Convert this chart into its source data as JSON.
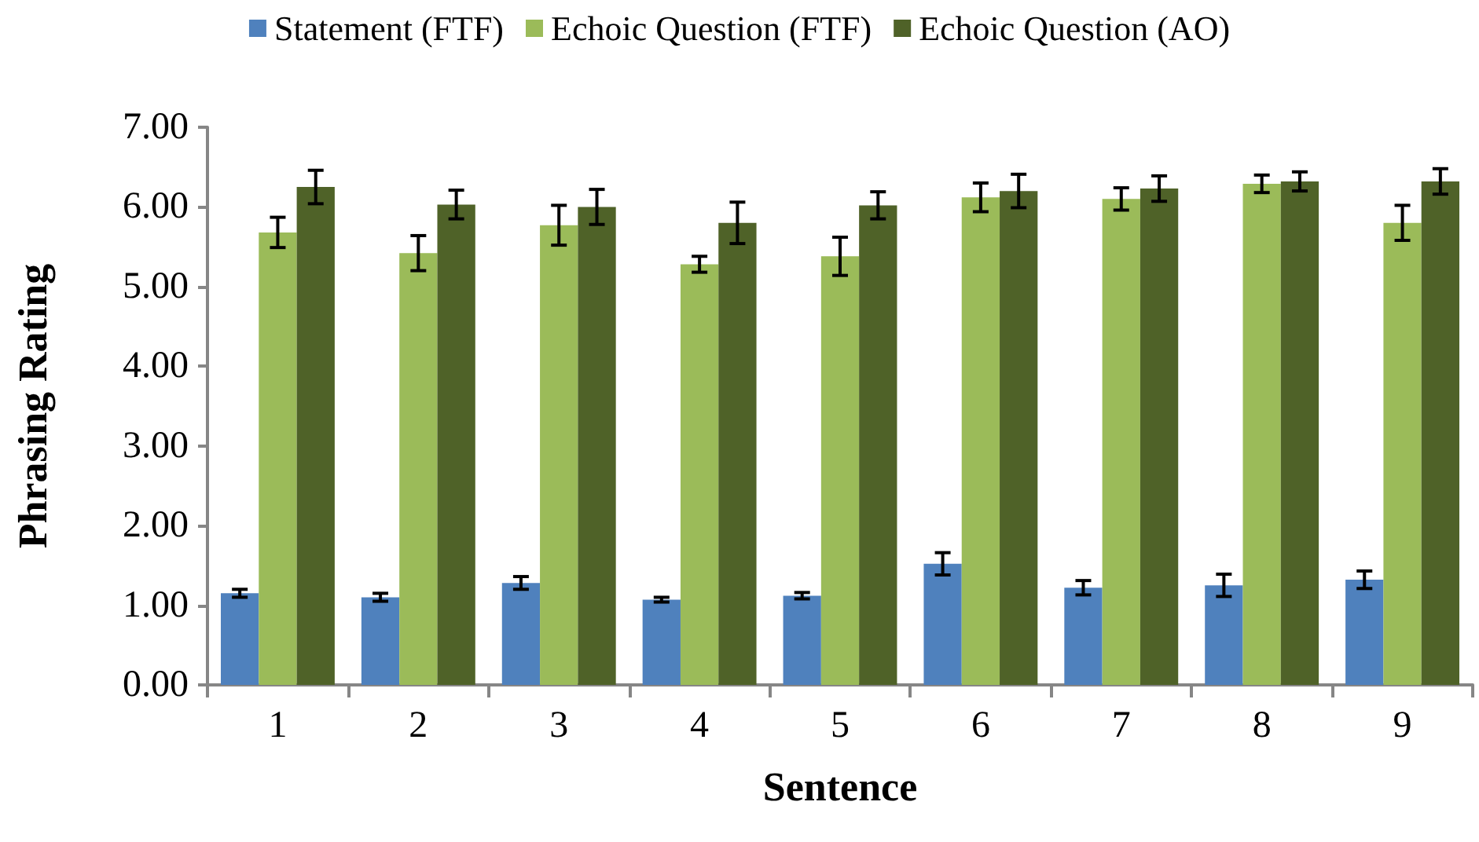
{
  "chart_data": {
    "type": "bar",
    "xlabel": "Sentence",
    "ylabel": "Phrasing Rating",
    "categories": [
      "1",
      "2",
      "3",
      "4",
      "5",
      "6",
      "7",
      "8",
      "9"
    ],
    "series": [
      {
        "name": "Statement (FTF)",
        "color": "#4f81bd",
        "values": [
          1.15,
          1.1,
          1.28,
          1.07,
          1.12,
          1.52,
          1.22,
          1.25,
          1.32
        ],
        "errors": [
          0.05,
          0.05,
          0.08,
          0.03,
          0.04,
          0.14,
          0.09,
          0.14,
          0.11
        ]
      },
      {
        "name": "Echoic Question (FTF)",
        "color": "#9bbb59",
        "values": [
          5.68,
          5.42,
          5.77,
          5.28,
          5.38,
          6.12,
          6.1,
          6.29,
          5.8
        ],
        "errors": [
          0.19,
          0.22,
          0.25,
          0.1,
          0.24,
          0.18,
          0.14,
          0.11,
          0.22
        ]
      },
      {
        "name": "Echoic Question (AO)",
        "color": "#4f6228",
        "values": [
          6.25,
          6.03,
          6.0,
          5.8,
          6.02,
          6.2,
          6.23,
          6.32,
          6.32
        ],
        "errors": [
          0.21,
          0.18,
          0.22,
          0.26,
          0.17,
          0.21,
          0.16,
          0.12,
          0.16
        ]
      }
    ],
    "ylim": [
      0,
      7
    ],
    "yticks": [
      {
        "value": 0,
        "label": "0.00"
      },
      {
        "value": 1,
        "label": "1.00"
      },
      {
        "value": 2,
        "label": "2.00"
      },
      {
        "value": 3,
        "label": "3.00"
      },
      {
        "value": 4,
        "label": "4.00"
      },
      {
        "value": 5,
        "label": "5.00"
      },
      {
        "value": 6,
        "label": "6.00"
      },
      {
        "value": 7,
        "label": "7.00"
      }
    ],
    "grid": false,
    "legend": "top"
  }
}
